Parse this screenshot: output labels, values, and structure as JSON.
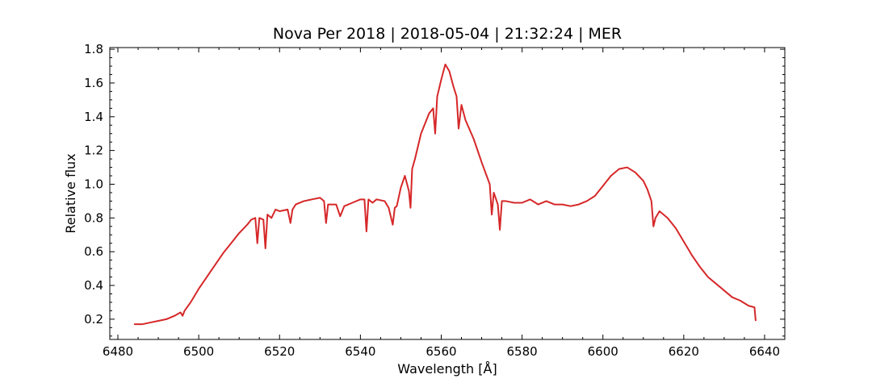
{
  "chart_data": {
    "type": "line",
    "title": "Nova Per 2018 | 2018-05-04 | 21:32:24 | MER",
    "xlabel": "Wavelength [Å]",
    "ylabel": "Relative flux",
    "xlim": [
      6478,
      6645
    ],
    "ylim": [
      0.08,
      1.81
    ],
    "xticks": [
      6480,
      6500,
      6520,
      6540,
      6560,
      6580,
      6600,
      6620,
      6640
    ],
    "yticks": [
      0.2,
      0.4,
      0.6,
      0.8,
      1.0,
      1.2,
      1.4,
      1.6,
      1.8
    ],
    "ytick_labels": [
      "0.2",
      "0.4",
      "0.6",
      "0.8",
      "1.0",
      "1.2",
      "1.4",
      "1.6",
      "1.8"
    ],
    "grid": false,
    "tick_direction": "in",
    "series_color": "#d62728",
    "series": [
      {
        "x": [
          6484,
          6486,
          6488,
          6490,
          6492,
          6494,
          6495.5,
          6496,
          6496.5,
          6498,
          6500,
          6502,
          6504,
          6506,
          6508,
          6510,
          6512,
          6513,
          6514,
          6514.5,
          6515,
          6516,
          6516.5,
          6517,
          6518,
          6519,
          6520,
          6522,
          6522.7,
          6523.2,
          6524,
          6526,
          6528,
          6530,
          6531,
          6531.5,
          6532,
          6534,
          6535,
          6536,
          6538,
          6540,
          6541,
          6541.5,
          6542,
          6543,
          6544,
          6546,
          6547,
          6548,
          6548.5,
          6549,
          6550,
          6551,
          6552,
          6552.4,
          6552.8,
          6553.5,
          6555,
          6557,
          6558,
          6558.5,
          6559,
          6560,
          6561,
          6562,
          6563,
          6563.8,
          6564.3,
          6565,
          6566,
          6568,
          6570,
          6572,
          6572.5,
          6573,
          6574,
          6574.5,
          6575,
          6576,
          6578,
          6580,
          6582,
          6584,
          6586,
          6588,
          6590,
          6592,
          6594,
          6596,
          6598,
          6600,
          6602,
          6604,
          6606,
          6608,
          6610,
          6611,
          6612,
          6612.5,
          6613,
          6614,
          6616,
          6618,
          6620,
          6622,
          6624,
          6626,
          6628,
          6630,
          6632,
          6634,
          6636,
          6637.5,
          6637.8
        ],
        "y": [
          0.17,
          0.17,
          0.18,
          0.19,
          0.2,
          0.22,
          0.24,
          0.22,
          0.25,
          0.3,
          0.38,
          0.45,
          0.52,
          0.59,
          0.65,
          0.71,
          0.76,
          0.79,
          0.8,
          0.65,
          0.8,
          0.79,
          0.62,
          0.82,
          0.8,
          0.85,
          0.84,
          0.85,
          0.77,
          0.85,
          0.88,
          0.9,
          0.91,
          0.92,
          0.9,
          0.77,
          0.88,
          0.88,
          0.81,
          0.87,
          0.89,
          0.91,
          0.91,
          0.72,
          0.91,
          0.89,
          0.91,
          0.9,
          0.86,
          0.76,
          0.86,
          0.87,
          0.98,
          1.05,
          0.96,
          0.86,
          1.09,
          1.15,
          1.3,
          1.42,
          1.45,
          1.3,
          1.52,
          1.62,
          1.71,
          1.67,
          1.58,
          1.52,
          1.33,
          1.47,
          1.38,
          1.27,
          1.13,
          1.0,
          0.82,
          0.95,
          0.88,
          0.73,
          0.9,
          0.9,
          0.89,
          0.89,
          0.91,
          0.88,
          0.9,
          0.88,
          0.88,
          0.87,
          0.88,
          0.9,
          0.93,
          0.99,
          1.05,
          1.09,
          1.1,
          1.07,
          1.02,
          0.97,
          0.9,
          0.75,
          0.8,
          0.84,
          0.8,
          0.74,
          0.66,
          0.58,
          0.51,
          0.45,
          0.41,
          0.37,
          0.33,
          0.31,
          0.28,
          0.27,
          0.19
        ]
      }
    ]
  }
}
